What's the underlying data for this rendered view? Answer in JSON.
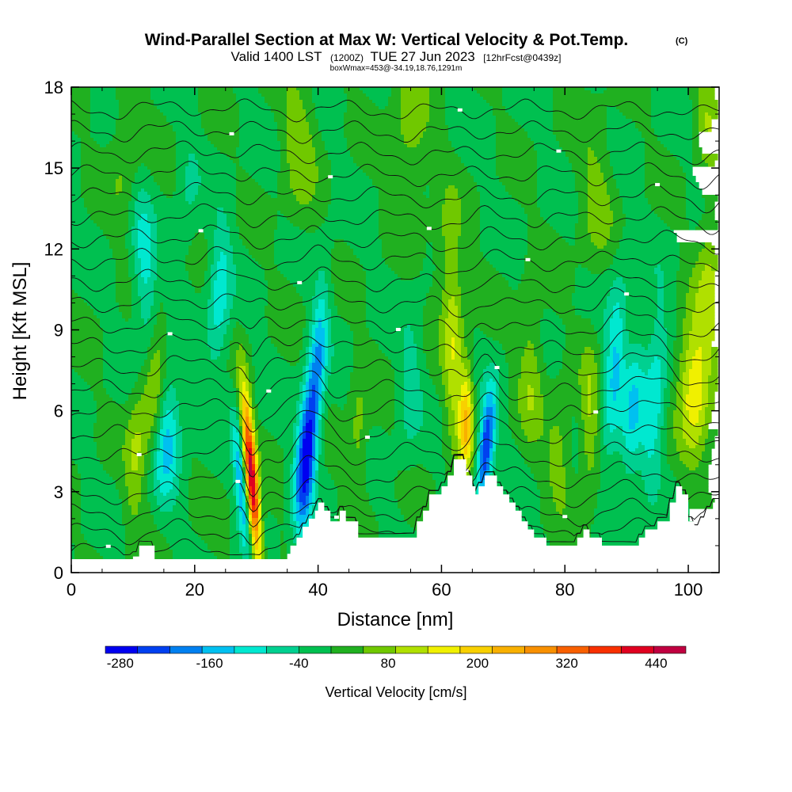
{
  "chart_data": {
    "type": "heatmap",
    "title": "Wind-Parallel Section at Max W: Vertical Velocity & Pot.Temp.",
    "title_mark": "(C)",
    "subtitle_parts": [
      "Valid 1400 LST",
      "(1200Z)",
      "TUE 27 Jun 2023",
      "[12hrFcst@0439z]"
    ],
    "note": "boxWmax=453@-34.19,18.76,1291m",
    "xlabel": "Distance [nm]",
    "ylabel": "Height [Kft MSL]",
    "xlim": [
      0,
      105
    ],
    "ylim": [
      0,
      18
    ],
    "xticks": [
      0,
      20,
      40,
      60,
      80,
      100
    ],
    "yticks": [
      0,
      3,
      6,
      9,
      12,
      15,
      18
    ],
    "colorbar": {
      "label": "Vertical Velocity [cm/s]",
      "min": -300,
      "max": 480,
      "tick_values": [
        -280,
        -160,
        -40,
        80,
        200,
        320,
        440
      ],
      "tick_labels": [
        "-280",
        "-160",
        "-40",
        "80",
        "200",
        "320",
        "440"
      ],
      "colors": [
        "#0000f0",
        "#0040f0",
        "#0080f0",
        "#00c0f0",
        "#00e8d0",
        "#00d090",
        "#00c050",
        "#20b020",
        "#70c800",
        "#b0e000",
        "#f0f000",
        "#f8d000",
        "#f8b000",
        "#f89000",
        "#f86000",
        "#f83000",
        "#e00020",
        "#c00040"
      ]
    },
    "terrain_kft": [
      [
        0,
        0.5
      ],
      [
        10,
        0.5
      ],
      [
        10,
        0.6
      ],
      [
        11,
        0.6
      ],
      [
        11,
        0.6
      ],
      [
        11,
        1.0
      ],
      [
        13.5,
        1.0
      ],
      [
        13.5,
        0.5
      ],
      [
        35,
        0.5
      ],
      [
        35,
        0.7
      ],
      [
        35.5,
        0.7
      ],
      [
        35.5,
        1.0
      ],
      [
        36.5,
        1.0
      ],
      [
        36.5,
        1.3
      ],
      [
        37.5,
        1.3
      ],
      [
        37.5,
        1.7
      ],
      [
        38.5,
        1.7
      ],
      [
        38.5,
        2.0
      ],
      [
        39.5,
        2.0
      ],
      [
        39.5,
        2.3
      ],
      [
        40,
        2.3
      ],
      [
        40,
        2.6
      ],
      [
        41,
        2.6
      ],
      [
        41,
        2.3
      ],
      [
        42,
        2.3
      ],
      [
        42,
        1.9
      ],
      [
        43.5,
        1.9
      ],
      [
        43.5,
        2.3
      ],
      [
        44.5,
        2.3
      ],
      [
        44.5,
        1.9
      ],
      [
        46.5,
        1.9
      ],
      [
        46.5,
        1.3
      ],
      [
        56,
        1.3
      ],
      [
        56,
        1.9
      ],
      [
        57,
        1.9
      ],
      [
        57,
        2.3
      ],
      [
        58,
        2.3
      ],
      [
        58,
        2.9
      ],
      [
        60,
        2.9
      ],
      [
        60,
        3.2
      ],
      [
        61,
        3.2
      ],
      [
        61,
        3.6
      ],
      [
        62,
        3.6
      ],
      [
        62,
        4.2
      ],
      [
        64,
        4.2
      ],
      [
        64,
        3.6
      ],
      [
        65,
        3.6
      ],
      [
        65,
        3.2
      ],
      [
        65.5,
        3.2
      ],
      [
        65.5,
        2.9
      ],
      [
        66,
        2.9
      ],
      [
        66,
        3.2
      ],
      [
        67,
        3.2
      ],
      [
        67,
        3.6
      ],
      [
        69,
        3.6
      ],
      [
        69,
        3.2
      ],
      [
        70,
        3.2
      ],
      [
        70,
        2.9
      ],
      [
        71,
        2.9
      ],
      [
        71,
        2.6
      ],
      [
        72,
        2.6
      ],
      [
        72,
        2.3
      ],
      [
        73,
        2.3
      ],
      [
        73,
        1.9
      ],
      [
        74,
        1.9
      ],
      [
        74,
        1.6
      ],
      [
        75,
        1.6
      ],
      [
        75,
        1.3
      ],
      [
        77,
        1.3
      ],
      [
        77,
        1.0
      ],
      [
        82,
        1.0
      ],
      [
        82,
        1.3
      ],
      [
        83,
        1.3
      ],
      [
        83,
        1.6
      ],
      [
        84,
        1.6
      ],
      [
        84,
        1.3
      ],
      [
        86,
        1.3
      ],
      [
        86,
        1.0
      ],
      [
        92,
        1.0
      ],
      [
        92,
        1.3
      ],
      [
        93,
        1.3
      ],
      [
        93,
        1.6
      ],
      [
        95,
        1.6
      ],
      [
        95,
        1.9
      ],
      [
        97,
        1.9
      ],
      [
        97,
        2.6
      ],
      [
        98,
        2.6
      ],
      [
        98,
        3.2
      ],
      [
        99,
        3.2
      ],
      [
        99,
        2.9
      ],
      [
        100,
        2.9
      ],
      [
        100,
        1.9
      ],
      [
        101,
        1.9
      ],
      [
        101,
        1.6
      ],
      [
        102,
        1.6
      ],
      [
        102,
        1.9
      ],
      [
        103,
        1.9
      ],
      [
        103,
        2.3
      ],
      [
        104,
        2.3
      ],
      [
        104,
        2.6
      ],
      [
        105,
        2.6
      ]
    ],
    "features_cm_s": [
      {
        "x": 13.5,
        "z": 6.8,
        "sx": 1.2,
        "sz": 2.0,
        "w": 120,
        "tilt": 0.15
      },
      {
        "x": 15.5,
        "z": 5.0,
        "sx": 1.6,
        "sz": 1.6,
        "w": -150,
        "tilt": 0.2
      },
      {
        "x": 12.0,
        "z": 11.0,
        "sx": 1.4,
        "sz": 2.5,
        "w": -110,
        "tilt": -0.3
      },
      {
        "x": 10.5,
        "z": 4.5,
        "sx": 1.2,
        "sz": 1.8,
        "w": 90,
        "tilt": 0.2
      },
      {
        "x": 29.2,
        "z": 3.5,
        "sx": 0.7,
        "sz": 2.2,
        "w": 450,
        "tilt": -0.35
      },
      {
        "x": 27.5,
        "z": 3.3,
        "sx": 0.7,
        "sz": 1.9,
        "w": -160,
        "tilt": -0.35
      },
      {
        "x": 38.0,
        "z": 4.3,
        "sx": 1.1,
        "sz": 2.0,
        "w": -280,
        "tilt": 0.3
      },
      {
        "x": 40.0,
        "z": 7.8,
        "sx": 1.0,
        "sz": 2.2,
        "w": -140,
        "tilt": 0.25
      },
      {
        "x": 24.0,
        "z": 10.2,
        "sx": 1.3,
        "sz": 2.0,
        "w": -110,
        "tilt": 0.2
      },
      {
        "x": 46.5,
        "z": 5.0,
        "sx": 1.1,
        "sz": 1.6,
        "w": 70,
        "tilt": 0.0
      },
      {
        "x": 64.0,
        "z": 5.6,
        "sx": 0.8,
        "sz": 1.4,
        "w": 210,
        "tilt": 0.05
      },
      {
        "x": 67.2,
        "z": 4.6,
        "sx": 0.9,
        "sz": 1.5,
        "w": -270,
        "tilt": 0.4
      },
      {
        "x": 62.0,
        "z": 8.0,
        "sx": 1.1,
        "sz": 2.4,
        "w": 110,
        "tilt": 0.0
      },
      {
        "x": 55.0,
        "z": 7.0,
        "sx": 1.3,
        "sz": 2.0,
        "w": -60,
        "tilt": 0.15
      },
      {
        "x": 74.5,
        "z": 7.5,
        "sx": 1.4,
        "sz": 2.0,
        "w": 80,
        "tilt": 0.0
      },
      {
        "x": 79.0,
        "z": 4.5,
        "sx": 1.5,
        "sz": 1.4,
        "w": 70,
        "tilt": 0.0
      },
      {
        "x": 84.0,
        "z": 5.5,
        "sx": 1.1,
        "sz": 2.0,
        "w": 90,
        "tilt": 0.0
      },
      {
        "x": 88.0,
        "z": 7.5,
        "sx": 1.2,
        "sz": 2.5,
        "w": -130,
        "tilt": 0.25
      },
      {
        "x": 91.0,
        "z": 6.0,
        "sx": 1.2,
        "sz": 2.2,
        "w": -110,
        "tilt": 0.3
      },
      {
        "x": 94.5,
        "z": 6.5,
        "sx": 1.3,
        "sz": 2.3,
        "w": -120,
        "tilt": 0.25
      },
      {
        "x": 101.0,
        "z": 7.0,
        "sx": 1.8,
        "sz": 1.8,
        "w": 180,
        "tilt": 0.0
      },
      {
        "x": 103.5,
        "z": 10.5,
        "sx": 1.4,
        "sz": 2.0,
        "w": 90,
        "tilt": 0.0
      },
      {
        "x": 103.0,
        "z": 17.0,
        "sx": 1.4,
        "sz": 1.5,
        "w": 80,
        "tilt": 0.0
      },
      {
        "x": 37.0,
        "z": 16.0,
        "sx": 2.0,
        "sz": 2.2,
        "w": 70,
        "tilt": 0.0
      },
      {
        "x": 55.0,
        "z": 16.5,
        "sx": 2.0,
        "sz": 2.0,
        "w": 75,
        "tilt": 0.0
      },
      {
        "x": 9.0,
        "z": 15.5,
        "sx": 1.8,
        "sz": 2.0,
        "w": 60,
        "tilt": 0.0
      },
      {
        "x": 85.0,
        "z": 14.0,
        "sx": 2.0,
        "sz": 2.0,
        "w": 60,
        "tilt": 0.0
      },
      {
        "x": 61.0,
        "z": 11.5,
        "sx": 1.5,
        "sz": 2.0,
        "w": 60,
        "tilt": 0.0
      },
      {
        "x": 19.0,
        "z": 14.0,
        "sx": 1.2,
        "sz": 2.0,
        "w": -40,
        "tilt": 0.1
      }
    ],
    "contour_levels_kft": [
      0.8,
      1.5,
      2.2,
      2.9,
      3.6,
      4.4,
      5.2,
      6.0,
      6.8,
      7.6,
      8.4,
      9.2,
      10.0,
      10.8,
      11.6,
      12.4,
      13.2,
      14.0,
      14.8,
      15.6,
      16.4,
      17.2
    ]
  }
}
